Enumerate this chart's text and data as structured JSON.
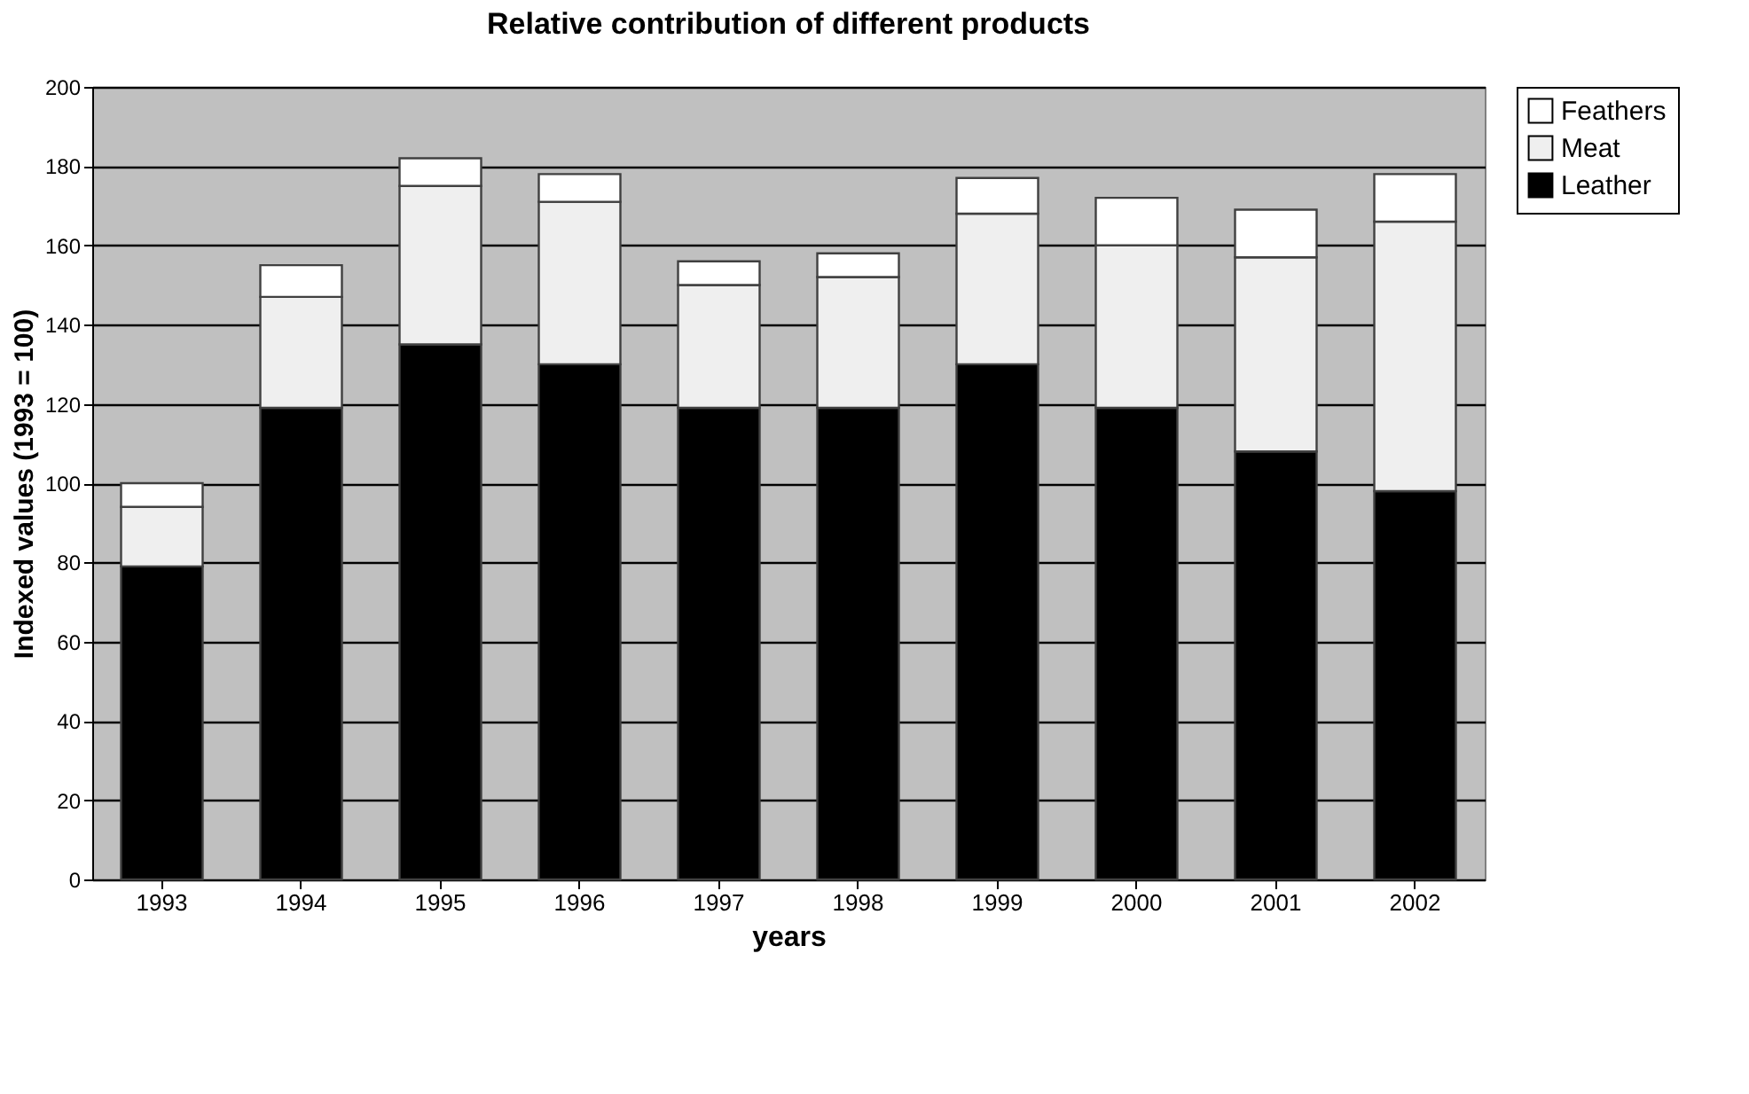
{
  "chart_data": {
    "type": "bar",
    "title": "Relative contribution of different products",
    "xlabel": "years",
    "ylabel": "Indexed values (1993 = 100)",
    "categories": [
      "1993",
      "1994",
      "1995",
      "1996",
      "1997",
      "1998",
      "1999",
      "2000",
      "2001",
      "2002"
    ],
    "stacked": true,
    "series": [
      {
        "name": "Leather",
        "color": "#000000",
        "values": [
          79,
          119,
          135,
          130,
          119,
          119,
          130,
          119,
          108,
          98
        ]
      },
      {
        "name": "Meat",
        "color": "#efefef",
        "values": [
          15,
          28,
          40,
          41,
          31,
          33,
          38,
          41,
          49,
          68
        ]
      },
      {
        "name": "Feathers",
        "color": "#ffffff",
        "values": [
          6,
          8,
          7,
          7,
          6,
          6,
          9,
          12,
          12,
          12
        ]
      }
    ],
    "ylim": [
      0,
      200
    ],
    "yticks": [
      0,
      20,
      40,
      60,
      80,
      100,
      120,
      140,
      160,
      180,
      200
    ],
    "grid": "y",
    "legend": "right"
  }
}
